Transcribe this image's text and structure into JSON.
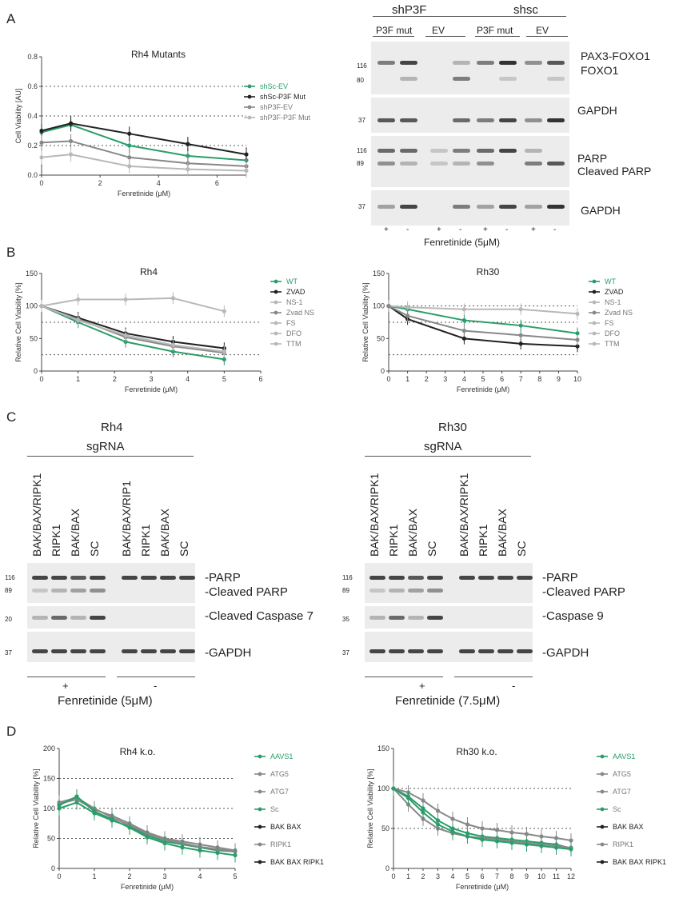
{
  "panels": {
    "A": "A",
    "B": "B",
    "C": "C",
    "D": "D"
  },
  "A": {
    "chart_title": "Rh4 Mutants",
    "ylabel": "Cell Viability [AU]",
    "xlabel": "Fenretinide (μM)",
    "yticks": [
      "0.0",
      "0.2",
      "0.4",
      "0.6",
      "0.8"
    ],
    "xticks": [
      "0",
      "2",
      "4",
      "6"
    ],
    "legend": [
      "shSc-EV",
      "shSc-P3F Mut",
      "shP3F-EV",
      "shP3F-P3F Mut"
    ],
    "blot": {
      "top_groups": [
        "shP3F",
        "shsc"
      ],
      "sub_groups": [
        "P3F mut",
        "EV",
        "P3F mut",
        "EV"
      ],
      "right_labels": [
        "PAX3-FOXO1",
        "FOXO1",
        "GAPDH",
        "PARP",
        "Cleaved PARP",
        "GAPDH"
      ],
      "markers": [
        "116",
        "80",
        "37",
        "116",
        "89",
        "37"
      ],
      "treatment_signs": [
        "+",
        "-",
        "+",
        "-",
        "+",
        "-",
        "+",
        "-"
      ],
      "treatment_label": "Fenretinide (5μM)"
    }
  },
  "B": {
    "ylabel": "Relative Cell Viability [%]",
    "xlabel": "Fenretinide (μM)",
    "legend": [
      "WT",
      "ZVAD",
      "NS-1",
      "Zvad NS",
      "FS",
      "DFO",
      "TTM"
    ],
    "rh4": {
      "title": "Rh4",
      "yticks": [
        "0",
        "50",
        "100",
        "150"
      ],
      "xticks": [
        "0",
        "1",
        "2",
        "3",
        "4",
        "5",
        "6"
      ]
    },
    "rh30": {
      "title": "Rh30",
      "yticks": [
        "0",
        "50",
        "100",
        "150"
      ],
      "xticks": [
        "0",
        "1",
        "2",
        "3",
        "4",
        "5",
        "6",
        "7",
        "8",
        "9",
        "10"
      ]
    }
  },
  "C": {
    "rh4": {
      "title": "Rh4",
      "sgrna": "sgRNA",
      "lanes": [
        "BAK/BAX/RIPK1",
        "RIPK1",
        "BAK/BAX",
        "SC",
        "BAK/BAX/RIP1",
        "RIPK1",
        "BAK/BAX",
        "SC"
      ],
      "markers": [
        "116",
        "89",
        "20",
        "37"
      ],
      "right_labels": [
        "PARP",
        "Cleaved PARP",
        "Cleaved Caspase 7",
        "GAPDH"
      ],
      "signs": [
        "+",
        "-"
      ],
      "treatment": "Fenretinide (5μM)"
    },
    "rh30": {
      "title": "Rh30",
      "sgrna": "sgRNA",
      "lanes": [
        "BAK/BAX/RIPK1",
        "RIPK1",
        "BAK/BAX",
        "SC",
        "BAK/BAX/RIPK1",
        "RIPK1",
        "BAK/BAX",
        "SC"
      ],
      "markers": [
        "116",
        "89",
        "35",
        "37"
      ],
      "right_labels": [
        "PARP",
        "Cleaved PARP",
        "Caspase 9",
        "GAPDH"
      ],
      "signs": [
        "+",
        "-"
      ],
      "treatment": "Fenretinide (7.5μM)"
    }
  },
  "D": {
    "ylabel": "Relative Cell Viability [%]",
    "xlabel": "Fenretinide (μM)",
    "legend": [
      "AAVS1",
      "ATG5",
      "ATG7",
      "Sc",
      "BAK BAX",
      "RIPK1",
      "BAK BAX RIPK1"
    ],
    "rh4": {
      "title": "Rh4 k.o.",
      "yticks": [
        "0",
        "50",
        "100",
        "150",
        "200"
      ],
      "xticks": [
        "0",
        "1",
        "2",
        "3",
        "4",
        "5"
      ]
    },
    "rh30": {
      "title": "Rh30 k.o.",
      "yticks": [
        "0",
        "50",
        "100",
        "150"
      ],
      "xticks": [
        "0",
        "1",
        "2",
        "3",
        "4",
        "5",
        "6",
        "7",
        "8",
        "9",
        "10",
        "11",
        "12"
      ]
    }
  },
  "colors": {
    "green": "#2a9d6a",
    "black": "#222222",
    "grey": "#888888",
    "lightgrey": "#b8b8b8"
  },
  "chart_data": [
    {
      "type": "line",
      "title": "Rh4 Mutants",
      "xlabel": "Fenretinide (μM)",
      "ylabel": "Cell Viability [AU]",
      "ylim": [
        0,
        0.8
      ],
      "xlim": [
        0,
        7
      ],
      "series": [
        {
          "name": "shSc-EV",
          "x": [
            0,
            1,
            3,
            5,
            7
          ],
          "y": [
            0.29,
            0.34,
            0.2,
            0.13,
            0.1
          ]
        },
        {
          "name": "shSc-P3F Mut",
          "x": [
            0,
            1,
            3,
            5,
            7
          ],
          "y": [
            0.3,
            0.35,
            0.28,
            0.21,
            0.14
          ]
        },
        {
          "name": "shP3F-EV",
          "x": [
            0,
            1,
            3,
            5,
            7
          ],
          "y": [
            0.22,
            0.23,
            0.12,
            0.08,
            0.06
          ]
        },
        {
          "name": "shP3F-P3F Mut",
          "x": [
            0,
            1,
            3,
            5,
            7
          ],
          "y": [
            0.12,
            0.14,
            0.06,
            0.04,
            0.03
          ]
        }
      ]
    },
    {
      "type": "line",
      "title": "Rh4",
      "xlabel": "Fenretinide (μM)",
      "ylabel": "Relative Cell Viability [%]",
      "ylim": [
        0,
        150
      ],
      "xlim": [
        0,
        6
      ],
      "series": [
        {
          "name": "WT",
          "x": [
            0,
            1,
            2.3,
            3.6,
            5
          ],
          "y": [
            100,
            75,
            45,
            30,
            18
          ]
        },
        {
          "name": "ZVAD",
          "x": [
            0,
            1,
            2.3,
            3.6,
            5
          ],
          "y": [
            100,
            82,
            58,
            45,
            35
          ]
        },
        {
          "name": "NS-1",
          "x": [
            0,
            1,
            2.3,
            3.6,
            5
          ],
          "y": [
            100,
            110,
            110,
            112,
            92
          ]
        },
        {
          "name": "Zvad NS",
          "x": [
            0,
            1,
            2.3,
            3.6,
            5
          ],
          "y": [
            100,
            80,
            52,
            38,
            28
          ]
        },
        {
          "name": "FS",
          "x": [
            0,
            1,
            2.3,
            3.6,
            5
          ],
          "y": [
            100,
            78,
            55,
            40,
            30
          ]
        }
      ]
    },
    {
      "type": "line",
      "title": "Rh30",
      "xlabel": "Fenretinide (μM)",
      "ylabel": "Relative Cell Viability [%]",
      "ylim": [
        0,
        150
      ],
      "xlim": [
        0,
        10
      ],
      "series": [
        {
          "name": "WT",
          "x": [
            0,
            1,
            4,
            7,
            10
          ],
          "y": [
            100,
            95,
            78,
            70,
            58
          ]
        },
        {
          "name": "ZVAD",
          "x": [
            0,
            1,
            4,
            7,
            10
          ],
          "y": [
            100,
            80,
            50,
            42,
            38
          ]
        },
        {
          "name": "NS-1",
          "x": [
            0,
            1,
            4,
            7,
            10
          ],
          "y": [
            100,
            98,
            95,
            95,
            88
          ]
        },
        {
          "name": "Zvad NS",
          "x": [
            0,
            1,
            4,
            7,
            10
          ],
          "y": [
            100,
            85,
            62,
            55,
            48
          ]
        }
      ]
    },
    {
      "type": "line",
      "title": "Rh4 k.o.",
      "xlabel": "Fenretinide (μM)",
      "ylabel": "Relative Cell Viability [%]",
      "ylim": [
        0,
        200
      ],
      "xlim": [
        0,
        5
      ],
      "series": [
        {
          "name": "AAVS1",
          "x": [
            0,
            0.5,
            1,
            1.5,
            2,
            2.5,
            3,
            3.5,
            4,
            4.5,
            5
          ],
          "y": [
            100,
            110,
            92,
            80,
            70,
            55,
            45,
            40,
            35,
            30,
            28
          ]
        },
        {
          "name": "ATG5",
          "x": [
            0,
            0.5,
            1,
            1.5,
            2,
            2.5,
            3,
            3.5,
            4,
            4.5,
            5
          ],
          "y": [
            110,
            118,
            100,
            85,
            72,
            58,
            48,
            42,
            36,
            32,
            28
          ]
        },
        {
          "name": "BAK BAX",
          "x": [
            0,
            0.5,
            1,
            1.5,
            2,
            2.5,
            3,
            3.5,
            4,
            4.5,
            5
          ],
          "y": [
            108,
            115,
            98,
            88,
            75,
            60,
            50,
            45,
            40,
            35,
            30
          ]
        },
        {
          "name": "Sc",
          "x": [
            0,
            0.5,
            1,
            1.5,
            2,
            2.5,
            3,
            3.5,
            4,
            4.5,
            5
          ],
          "y": [
            105,
            120,
            95,
            82,
            68,
            52,
            42,
            35,
            30,
            26,
            22
          ]
        }
      ]
    },
    {
      "type": "line",
      "title": "Rh30 k.o.",
      "xlabel": "Fenretinide (μM)",
      "ylabel": "Relative Cell Viability [%]",
      "ylim": [
        0,
        150
      ],
      "xlim": [
        0,
        12
      ],
      "series": [
        {
          "name": "AAVS1",
          "x": [
            0,
            1,
            2,
            3,
            4,
            5,
            6,
            7,
            8,
            9,
            10,
            11,
            12
          ],
          "y": [
            100,
            90,
            75,
            60,
            50,
            44,
            40,
            38,
            36,
            34,
            32,
            30,
            25
          ]
        },
        {
          "name": "ATG5",
          "x": [
            0,
            1,
            2,
            3,
            4,
            5,
            6,
            7,
            8,
            9,
            10,
            11,
            12
          ],
          "y": [
            100,
            95,
            85,
            72,
            62,
            55,
            50,
            48,
            45,
            43,
            40,
            38,
            35
          ]
        },
        {
          "name": "BAK BAX",
          "x": [
            0,
            1,
            2,
            3,
            4,
            5,
            6,
            7,
            8,
            9,
            10,
            11,
            12
          ],
          "y": [
            100,
            80,
            62,
            50,
            44,
            40,
            38,
            36,
            34,
            32,
            30,
            28,
            26
          ]
        },
        {
          "name": "Sc",
          "x": [
            0,
            1,
            2,
            3,
            4,
            5,
            6,
            7,
            8,
            9,
            10,
            11,
            12
          ],
          "y": [
            100,
            88,
            70,
            55,
            46,
            40,
            36,
            34,
            32,
            30,
            28,
            26,
            24
          ]
        }
      ]
    }
  ]
}
